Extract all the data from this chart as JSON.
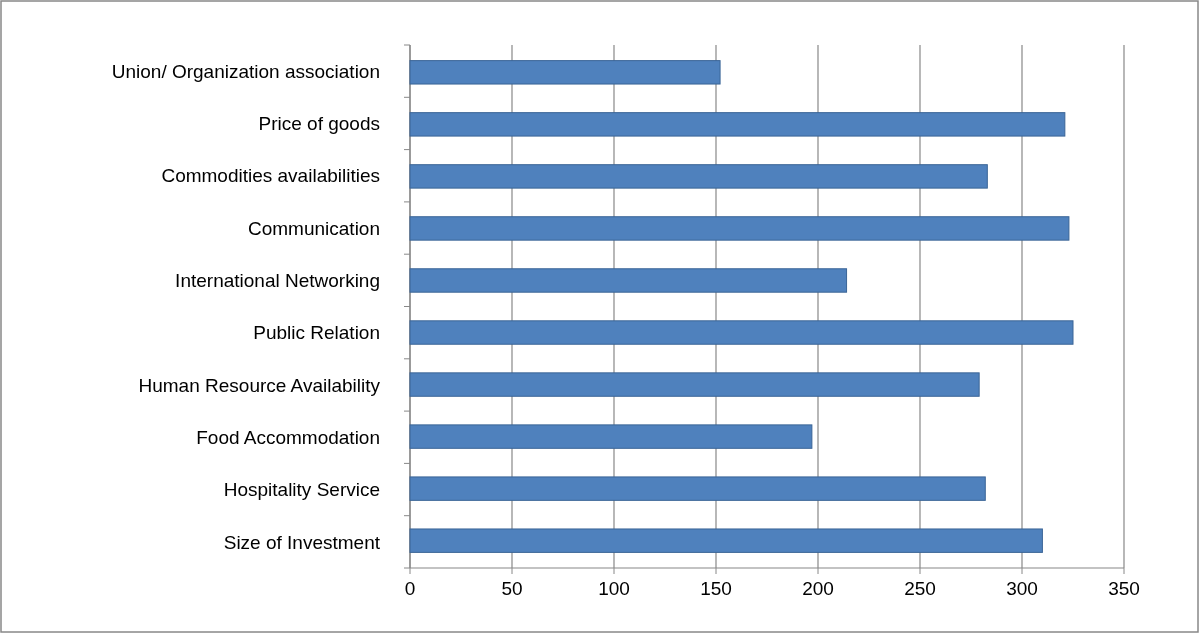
{
  "chart_data": {
    "type": "bar",
    "orientation": "horizontal",
    "categories": [
      "Union/ Organization association",
      "Price of goods",
      "Commodities availabilities",
      "Communication",
      "International Networking",
      "Public Relation",
      "Human Resource Availability",
      "Food Accommodation",
      "Hospitality Service",
      "Size of Investment"
    ],
    "values": [
      152,
      321,
      283,
      323,
      214,
      325,
      279,
      197,
      282,
      310
    ],
    "color": "#4f81bd",
    "xlim": [
      0,
      350
    ],
    "xticks": [
      0,
      50,
      100,
      150,
      200,
      250,
      300,
      350
    ],
    "grid": "x"
  }
}
